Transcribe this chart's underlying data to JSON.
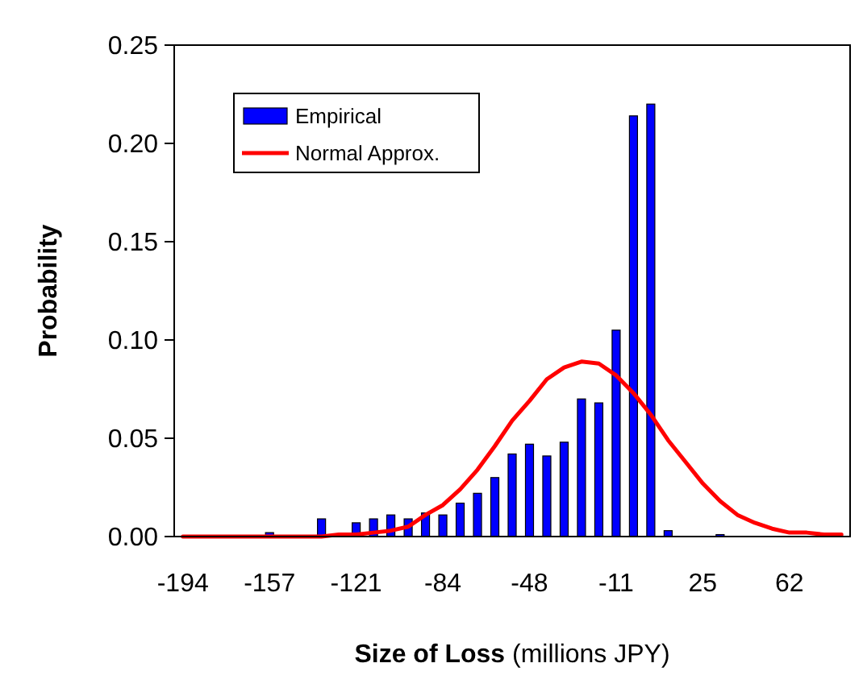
{
  "chart_data": {
    "type": "bar",
    "xlabel": "Size of Loss (millions JPY)",
    "ylabel": "Probability",
    "categories": [
      "-194",
      null,
      null,
      null,
      null,
      "-157",
      null,
      null,
      null,
      null,
      "-121",
      null,
      null,
      null,
      null,
      "-84",
      null,
      null,
      null,
      null,
      "-48",
      null,
      null,
      null,
      null,
      "-11",
      null,
      null,
      null,
      null,
      "25",
      null,
      null,
      null,
      null,
      "62",
      null,
      null,
      null
    ],
    "ylim": [
      0,
      0.25
    ],
    "yticks": [
      {
        "value": 0,
        "label": "0.00"
      },
      {
        "value": 0.05,
        "label": "0.05"
      },
      {
        "value": 0.1,
        "label": "0.10"
      },
      {
        "value": 0.15,
        "label": "0.15"
      },
      {
        "value": 0.2,
        "label": "0.20"
      },
      {
        "value": 0.25,
        "label": "0.25"
      }
    ],
    "grid": false,
    "legend": "top left",
    "series": [
      {
        "name": "Empirical",
        "color": "#0000ff",
        "values": [
          null,
          0,
          0,
          0,
          0,
          0.002,
          0,
          0,
          0.009,
          0,
          0.007,
          0.009,
          0.011,
          0.009,
          0.012,
          0.011,
          0.017,
          0.022,
          0.03,
          0.042,
          0.047,
          0.041,
          0.048,
          0.07,
          0.068,
          0.105,
          0.214,
          0.22,
          0.003,
          0,
          0,
          0.001,
          0,
          0,
          0,
          0,
          0,
          0,
          0
        ]
      },
      {
        "name": "Normal Approx.",
        "type": "line",
        "color": "#ff0000",
        "marker": "none",
        "line_style": "solid",
        "values": [
          0,
          0,
          0,
          0,
          0,
          0,
          0,
          0,
          0,
          0.001,
          0.001,
          0.002,
          0.003,
          0.005,
          0.011,
          0.016,
          0.024,
          0.034,
          0.046,
          0.059,
          0.069,
          0.08,
          0.086,
          0.089,
          0.088,
          0.082,
          0.073,
          0.062,
          0.049,
          0.038,
          0.027,
          0.018,
          0.011,
          0.007,
          0.004,
          0.002,
          0.002,
          0.001,
          0.001
        ]
      }
    ]
  }
}
